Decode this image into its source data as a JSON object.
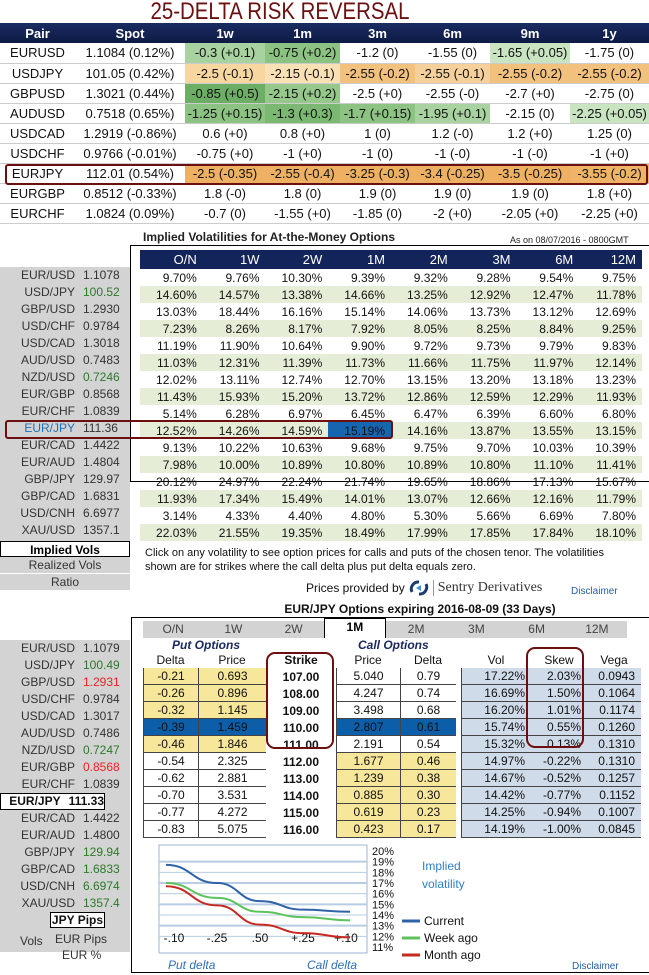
{
  "risk_reversal": {
    "title": "25-DELTA RISK REVERSAL",
    "columns": [
      "Pair",
      "Spot",
      "1w",
      "1m",
      "3m",
      "6m",
      "9m",
      "1y"
    ],
    "rows": [
      {
        "pair": "EURUSD",
        "spot": "1.1084 (0.12%)",
        "cells": [
          "-0.3 (+0.1)",
          "-0.75 (+0.2)",
          "-1.2 (0)",
          "-1.55 (0)",
          "-1.65 (+0.05)",
          "-1.75 (0)"
        ],
        "colors": [
          "#a8d29f",
          "#8cc383",
          "",
          "",
          "#c8e4c1",
          ""
        ]
      },
      {
        "pair": "USDJPY",
        "spot": "101.05 (0.42%)",
        "cells": [
          "-2.5 (-0.1)",
          "-2.15 (-0.1)",
          "-2.55 (-0.2)",
          "-2.55 (-0.1)",
          "-2.55 (-0.2)",
          "-2.55 (-0.2)"
        ],
        "colors": [
          "#f7d6a0",
          "#f9e0b5",
          "#f2c17e",
          "#f6d09a",
          "#f2c17e",
          "#f2c17e"
        ]
      },
      {
        "pair": "GBPUSD",
        "spot": "1.3021 (0.44%)",
        "cells": [
          "-0.85 (+0.5)",
          "-2.15 (+0.2)",
          "-2.5 (+0)",
          "-2.55 (-0)",
          "-2.7 (+0)",
          "-2.75 (0)"
        ],
        "colors": [
          "#6cae63",
          "#96c88c",
          "",
          "",
          "",
          ""
        ]
      },
      {
        "pair": "AUDUSD",
        "spot": "0.7518 (0.65%)",
        "cells": [
          "-1.25 (+0.15)",
          "-1.3 (+0.3)",
          "-1.7 (+0.15)",
          "-1.95 (+0.1)",
          "-2.15 (0)",
          "-2.25 (+0.05)"
        ],
        "colors": [
          "#8cc383",
          "#7bb972",
          "#8cc383",
          "#a8d29f",
          "",
          "#c8e4c1"
        ]
      },
      {
        "pair": "USDCAD",
        "spot": "1.2919 (-0.86%)",
        "cells": [
          "0.6 (+0)",
          "0.8 (+0)",
          "1 (0)",
          "1.2 (-0)",
          "1.2 (+0)",
          "1.25 (0)"
        ],
        "colors": [
          "",
          "",
          "",
          "",
          "",
          ""
        ]
      },
      {
        "pair": "USDCHF",
        "spot": "0.9766 (-0.01%)",
        "cells": [
          "-0.75 (+0)",
          "-1 (+0)",
          "-1 (0)",
          "-1 (-0)",
          "-1 (-0)",
          "-1 (+0)"
        ],
        "colors": [
          "",
          "",
          "",
          "",
          "",
          ""
        ]
      },
      {
        "pair": "EURJPY",
        "spot": "112.01 (0.54%)",
        "cells": [
          "-2.5 (-0.35)",
          "-2.55 (-0.4)",
          "-3.25 (-0.3)",
          "-3.4 (-0.25)",
          "-3.5 (-0.25)",
          "-3.55 (-0.2)"
        ],
        "colors": [
          "#eeb062",
          "#eeb062",
          "#eeb062",
          "#eeb062",
          "#eeb062",
          "#efb468"
        ]
      },
      {
        "pair": "EURGBP",
        "spot": "0.8512 (-0.33%)",
        "cells": [
          "1.8 (-0)",
          "1.8 (0)",
          "1.9 (0)",
          "1.9 (0)",
          "1.9 (0)",
          "1.8 (+0)"
        ],
        "colors": [
          "",
          "",
          "",
          "",
          "",
          ""
        ]
      },
      {
        "pair": "EURCHF",
        "spot": "1.0824 (0.09%)",
        "cells": [
          "-0.7 (0)",
          "-1.55 (+0)",
          "-1.85 (0)",
          "-2 (+0)",
          "-2.05 (+0)",
          "-2.25 (+0)"
        ],
        "colors": [
          "",
          "",
          "",
          "",
          "",
          ""
        ]
      }
    ]
  },
  "implied_vols": {
    "title": "Implied Volatilities for At-the-Money Options",
    "as_of": "As on 08/07/2016 - 0800GMT",
    "tenors": [
      "O/N",
      "1W",
      "2W",
      "1M",
      "2M",
      "3M",
      "6M",
      "12M"
    ],
    "rows": [
      {
        "pair": "EUR/USD",
        "spot": "1.1078",
        "spot_color": "#333",
        "vols": [
          "9.70%",
          "9.76%",
          "10.30%",
          "9.39%",
          "9.32%",
          "9.28%",
          "9.54%",
          "9.75%"
        ]
      },
      {
        "pair": "USD/JPY",
        "spot": "100.52",
        "spot_color": "#2a7a2a",
        "vols": [
          "14.60%",
          "14.57%",
          "13.38%",
          "14.66%",
          "13.25%",
          "12.92%",
          "12.47%",
          "11.78%"
        ]
      },
      {
        "pair": "GBP/USD",
        "spot": "1.2930",
        "spot_color": "#333",
        "vols": [
          "13.03%",
          "18.44%",
          "16.16%",
          "15.14%",
          "14.06%",
          "13.73%",
          "13.12%",
          "12.69%"
        ]
      },
      {
        "pair": "USD/CHF",
        "spot": "0.9784",
        "spot_color": "#333",
        "vols": [
          "7.23%",
          "8.26%",
          "8.17%",
          "7.92%",
          "8.05%",
          "8.25%",
          "8.84%",
          "9.25%"
        ]
      },
      {
        "pair": "USD/CAD",
        "spot": "1.3018",
        "spot_color": "#333",
        "vols": [
          "11.19%",
          "11.90%",
          "10.64%",
          "9.90%",
          "9.72%",
          "9.73%",
          "9.79%",
          "9.83%"
        ]
      },
      {
        "pair": "AUD/USD",
        "spot": "0.7483",
        "spot_color": "#333",
        "vols": [
          "11.03%",
          "12.31%",
          "11.39%",
          "11.73%",
          "11.66%",
          "11.75%",
          "11.97%",
          "12.14%"
        ]
      },
      {
        "pair": "NZD/USD",
        "spot": "0.7246",
        "spot_color": "#2a7a2a",
        "vols": [
          "12.02%",
          "13.11%",
          "12.74%",
          "12.70%",
          "13.15%",
          "13.20%",
          "13.18%",
          "13.23%"
        ]
      },
      {
        "pair": "EUR/GBP",
        "spot": "0.8568",
        "spot_color": "#333",
        "vols": [
          "11.43%",
          "15.93%",
          "15.20%",
          "13.72%",
          "12.86%",
          "12.59%",
          "12.29%",
          "11.93%"
        ]
      },
      {
        "pair": "EUR/CHF",
        "spot": "1.0839",
        "spot_color": "#333",
        "vols": [
          "5.14%",
          "6.28%",
          "6.97%",
          "6.45%",
          "6.47%",
          "6.39%",
          "6.60%",
          "6.80%"
        ]
      },
      {
        "pair": "EUR/JPY",
        "spot": "111.36",
        "spot_color": "#333",
        "selected": true,
        "vols": [
          "12.52%",
          "14.26%",
          "14.59%",
          "15.19%",
          "14.16%",
          "13.87%",
          "13.55%",
          "13.15%"
        ]
      },
      {
        "pair": "EUR/CAD",
        "spot": "1.4422",
        "spot_color": "#333",
        "vols": [
          "9.13%",
          "10.22%",
          "10.63%",
          "9.68%",
          "9.75%",
          "9.70%",
          "10.03%",
          "10.39%"
        ]
      },
      {
        "pair": "EUR/AUD",
        "spot": "1.4804",
        "spot_color": "#333",
        "vols": [
          "7.98%",
          "10.00%",
          "10.89%",
          "10.80%",
          "10.89%",
          "10.80%",
          "11.10%",
          "11.41%"
        ]
      },
      {
        "pair": "GBP/JPY",
        "spot": "129.97",
        "spot_color": "#333",
        "vols": [
          "20.12%",
          "24.97%",
          "22.24%",
          "21.74%",
          "19.65%",
          "18.86%",
          "17.13%",
          "15.67%"
        ]
      },
      {
        "pair": "GBP/CAD",
        "spot": "1.6831",
        "spot_color": "#333",
        "vols": [
          "11.93%",
          "17.34%",
          "15.49%",
          "14.01%",
          "13.07%",
          "12.66%",
          "12.16%",
          "11.79%"
        ]
      },
      {
        "pair": "USD/CNH",
        "spot": "6.6977",
        "spot_color": "#333",
        "vols": [
          "3.14%",
          "4.33%",
          "4.40%",
          "4.80%",
          "5.30%",
          "5.66%",
          "6.69%",
          "7.80%"
        ]
      },
      {
        "pair": "XAU/USD",
        "spot": "1357.1",
        "spot_color": "#333",
        "vols": [
          "22.03%",
          "21.55%",
          "19.35%",
          "18.49%",
          "17.99%",
          "17.85%",
          "17.84%",
          "18.10%"
        ]
      }
    ],
    "selected_tenor": "1M",
    "left_tabs": [
      "Implied Vols",
      "Realized Vols",
      "Ratio"
    ],
    "active_left_tab": "Implied Vols",
    "note": "Click on any volatility to see option prices for calls and puts of the chosen tenor. The volatilities shown are for strikes where the call delta plus put delta equals zero.",
    "provided_by": "Prices provided by",
    "provider": "Sentry Derivatives",
    "disclaimer": "Disclaimer"
  },
  "options": {
    "title": "EUR/JPY Options expiring 2016-08-09 (33 Days)",
    "tenors": [
      "O/N",
      "1W",
      "2W",
      "1M",
      "2M",
      "3M",
      "6M",
      "12M"
    ],
    "active_tenor": "1M",
    "put_label": "Put Options",
    "call_label": "Call Options",
    "columns": [
      "Delta",
      "Price",
      "Strike",
      "Price",
      "Delta",
      "Vol",
      "Skew",
      "Vega"
    ],
    "rows": [
      {
        "put_delta": "-0.21",
        "put_price": "0.693",
        "strike": "107.00",
        "call_price": "5.040",
        "call_delta": "0.79",
        "vol": "17.22%",
        "skew": "2.03%",
        "vega": "0.0943"
      },
      {
        "put_delta": "-0.26",
        "put_price": "0.896",
        "strike": "108.00",
        "call_price": "4.247",
        "call_delta": "0.74",
        "vol": "16.69%",
        "skew": "1.50%",
        "vega": "0.1064"
      },
      {
        "put_delta": "-0.32",
        "put_price": "1.145",
        "strike": "109.00",
        "call_price": "3.498",
        "call_delta": "0.68",
        "vol": "16.20%",
        "skew": "1.01%",
        "vega": "0.1174"
      },
      {
        "put_delta": "-0.39",
        "put_price": "1.459",
        "strike": "110.00",
        "call_price": "2.807",
        "call_delta": "0.61",
        "vol": "15.74%",
        "skew": "0.55%",
        "vega": "0.1260",
        "selected": true
      },
      {
        "put_delta": "-0.46",
        "put_price": "1.846",
        "strike": "111.00",
        "call_price": "2.191",
        "call_delta": "0.54",
        "vol": "15.32%",
        "skew": "0.13%",
        "vega": "0.1310"
      },
      {
        "put_delta": "-0.54",
        "put_price": "2.325",
        "strike": "112.00",
        "call_price": "1.677",
        "call_delta": "0.46",
        "vol": "14.97%",
        "skew": "-0.22%",
        "vega": "0.1310"
      },
      {
        "put_delta": "-0.62",
        "put_price": "2.881",
        "strike": "113.00",
        "call_price": "1.239",
        "call_delta": "0.38",
        "vol": "14.67%",
        "skew": "-0.52%",
        "vega": "0.1257"
      },
      {
        "put_delta": "-0.70",
        "put_price": "3.531",
        "strike": "114.00",
        "call_price": "0.885",
        "call_delta": "0.30",
        "vol": "14.42%",
        "skew": "-0.77%",
        "vega": "0.1152"
      },
      {
        "put_delta": "-0.77",
        "put_price": "4.272",
        "strike": "115.00",
        "call_price": "0.619",
        "call_delta": "0.23",
        "vol": "14.25%",
        "skew": "-0.94%",
        "vega": "0.1007"
      },
      {
        "put_delta": "-0.83",
        "put_price": "5.075",
        "strike": "116.00",
        "call_price": "0.423",
        "call_delta": "0.17",
        "vol": "14.19%",
        "skew": "-1.00%",
        "vega": "0.0845"
      }
    ],
    "spots": [
      {
        "pair": "EUR/USD",
        "spot": "1.1079",
        "color": "#333"
      },
      {
        "pair": "USD/JPY",
        "spot": "100.49",
        "color": "#2a7a2a"
      },
      {
        "pair": "GBP/USD",
        "spot": "1.2931",
        "color": "#ee2222"
      },
      {
        "pair": "USD/CHF",
        "spot": "0.9784",
        "color": "#333"
      },
      {
        "pair": "USD/CAD",
        "spot": "1.3017",
        "color": "#333"
      },
      {
        "pair": "AUD/USD",
        "spot": "0.7486",
        "color": "#333"
      },
      {
        "pair": "NZD/USD",
        "spot": "0.7247",
        "color": "#2a7a2a"
      },
      {
        "pair": "EUR/GBP",
        "spot": "0.8568",
        "color": "#ee2222"
      },
      {
        "pair": "EUR/CHF",
        "spot": "1.0839",
        "color": "#333"
      },
      {
        "pair": "EUR/JPY",
        "spot": "111.33",
        "color": "#000",
        "selected": true
      },
      {
        "pair": "EUR/CAD",
        "spot": "1.4422",
        "color": "#333"
      },
      {
        "pair": "EUR/AUD",
        "spot": "1.4800",
        "color": "#333"
      },
      {
        "pair": "GBP/JPY",
        "spot": "129.94",
        "color": "#2a7a2a"
      },
      {
        "pair": "GBP/CAD",
        "spot": "1.6833",
        "color": "#2a7a2a"
      },
      {
        "pair": "USD/CNH",
        "spot": "6.6974",
        "color": "#2a7a2a"
      },
      {
        "pair": "XAU/USD",
        "spot": "1357.4",
        "color": "#2a7a2a"
      }
    ],
    "units": {
      "label": "Vols",
      "items": [
        "JPY Pips",
        "EUR Pips",
        "EUR %"
      ],
      "active": "JPY Pips"
    },
    "disclaimer": "Disclaimer"
  },
  "chart_data": {
    "type": "line",
    "x_tick_labels": [
      "-.10",
      "-.25",
      ".50",
      "+.25",
      "+.10"
    ],
    "y_tick_labels": [
      "20%",
      "19%",
      "18%",
      "17%",
      "16%",
      "15%",
      "14%",
      "13%",
      "12%",
      "11%"
    ],
    "ylim": [
      11,
      20
    ],
    "xlabel_left": "Put delta",
    "xlabel_right": "Call delta",
    "legend_title": [
      "Implied",
      "volatility"
    ],
    "legend_position": "right",
    "grid": true,
    "series": [
      {
        "name": "Current",
        "color": "#2f63a8",
        "values": [
          18.7,
          17.0,
          15.3,
          14.5,
          14.3
        ]
      },
      {
        "name": "Week ago",
        "color": "#5cc35c",
        "values": [
          17.0,
          15.6,
          14.3,
          13.8,
          13.5
        ]
      },
      {
        "name": "Month ago",
        "color": "#c8281e",
        "values": [
          16.7,
          14.9,
          13.1,
          12.3,
          11.9
        ]
      }
    ]
  }
}
